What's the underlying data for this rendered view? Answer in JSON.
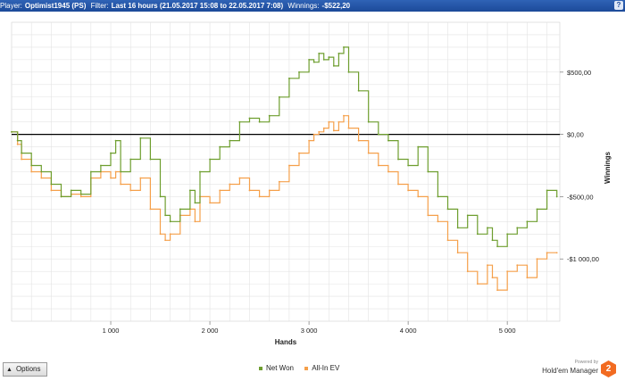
{
  "title_bar": {
    "player_label": "Player:",
    "player_value": "Optimist1945 (PS)",
    "filter_label": "Filter:",
    "filter_value": "Last 16 hours (21.05.2017 15:08 to 22.05.2017 7:08)",
    "winnings_label": "Winnings:",
    "winnings_value": "-$522,20",
    "help_icon": "?"
  },
  "options_button": {
    "label": "Options",
    "icon": "triangle-up-icon"
  },
  "branding": {
    "powered_by": "Powered by",
    "product": "Hold'em Manager",
    "logo_text": "2"
  },
  "colors": {
    "net_won": "#6e9e2f",
    "allin_ev": "#f5a04b",
    "title_bar": "#1c4a99",
    "zero_line": "#000000",
    "grid": "#e3e3e3"
  },
  "chart_data": {
    "type": "line",
    "xlabel": "Hands",
    "ylabel": "Winnings",
    "xlim": [
      0,
      5530
    ],
    "ylim": [
      -1500,
      900
    ],
    "x_ticks": [
      1000,
      2000,
      3000,
      4000,
      5000
    ],
    "x_tick_labels": [
      "1 000",
      "2 000",
      "3 000",
      "4 000",
      "5 000"
    ],
    "y_ticks": [
      500,
      0,
      -500,
      -1000
    ],
    "y_tick_labels": [
      "$500,00",
      "$0,00",
      "-$500,00",
      "-$1 000,00"
    ],
    "grid": true,
    "legend_position": "bottom-center",
    "series": [
      {
        "name": "Net Won",
        "color": "#6e9e2f",
        "x": [
          0,
          60,
          100,
          200,
          300,
          400,
          500,
          600,
          700,
          800,
          900,
          1000,
          1050,
          1100,
          1200,
          1300,
          1400,
          1500,
          1550,
          1600,
          1700,
          1800,
          1850,
          1900,
          2000,
          2100,
          2200,
          2300,
          2400,
          2500,
          2600,
          2700,
          2800,
          2900,
          3000,
          3050,
          3100,
          3150,
          3200,
          3250,
          3300,
          3350,
          3400,
          3500,
          3600,
          3700,
          3800,
          3900,
          4000,
          4100,
          4200,
          4300,
          4400,
          4500,
          4600,
          4700,
          4800,
          4850,
          4900,
          5000,
          5100,
          5200,
          5300,
          5400,
          5500
        ],
        "values": [
          20,
          -50,
          -150,
          -250,
          -300,
          -400,
          -500,
          -450,
          -480,
          -300,
          -250,
          -150,
          -50,
          -300,
          -200,
          -30,
          -200,
          -500,
          -650,
          -700,
          -600,
          -450,
          -550,
          -300,
          -200,
          -100,
          -50,
          100,
          130,
          100,
          150,
          300,
          450,
          500,
          600,
          580,
          650,
          600,
          620,
          550,
          650,
          700,
          500,
          350,
          100,
          0,
          -50,
          -200,
          -250,
          -100,
          -300,
          -500,
          -600,
          -750,
          -650,
          -800,
          -750,
          -850,
          -900,
          -800,
          -750,
          -700,
          -600,
          -450,
          -500
        ]
      },
      {
        "name": "All-In EV",
        "color": "#f5a04b",
        "x": [
          0,
          60,
          100,
          200,
          300,
          400,
          500,
          600,
          700,
          800,
          900,
          1000,
          1050,
          1100,
          1200,
          1300,
          1400,
          1500,
          1550,
          1600,
          1700,
          1800,
          1850,
          1900,
          2000,
          2100,
          2200,
          2300,
          2400,
          2500,
          2600,
          2700,
          2800,
          2900,
          3000,
          3050,
          3100,
          3150,
          3200,
          3250,
          3300,
          3350,
          3400,
          3500,
          3600,
          3700,
          3800,
          3900,
          4000,
          4100,
          4200,
          4300,
          4400,
          4500,
          4600,
          4700,
          4800,
          4850,
          4900,
          5000,
          5100,
          5200,
          5300,
          5400,
          5500
        ],
        "values": [
          20,
          -80,
          -200,
          -300,
          -350,
          -450,
          -500,
          -480,
          -500,
          -350,
          -300,
          -350,
          -300,
          -400,
          -450,
          -350,
          -600,
          -800,
          -850,
          -800,
          -650,
          -600,
          -700,
          -500,
          -550,
          -450,
          -400,
          -350,
          -450,
          -500,
          -450,
          -380,
          -250,
          -150,
          -50,
          0,
          20,
          50,
          100,
          30,
          100,
          150,
          50,
          -50,
          -150,
          -250,
          -300,
          -400,
          -450,
          -500,
          -650,
          -700,
          -850,
          -950,
          -1100,
          -1200,
          -1050,
          -1150,
          -1250,
          -1100,
          -1050,
          -1150,
          -1000,
          -950,
          -950
        ]
      }
    ]
  }
}
